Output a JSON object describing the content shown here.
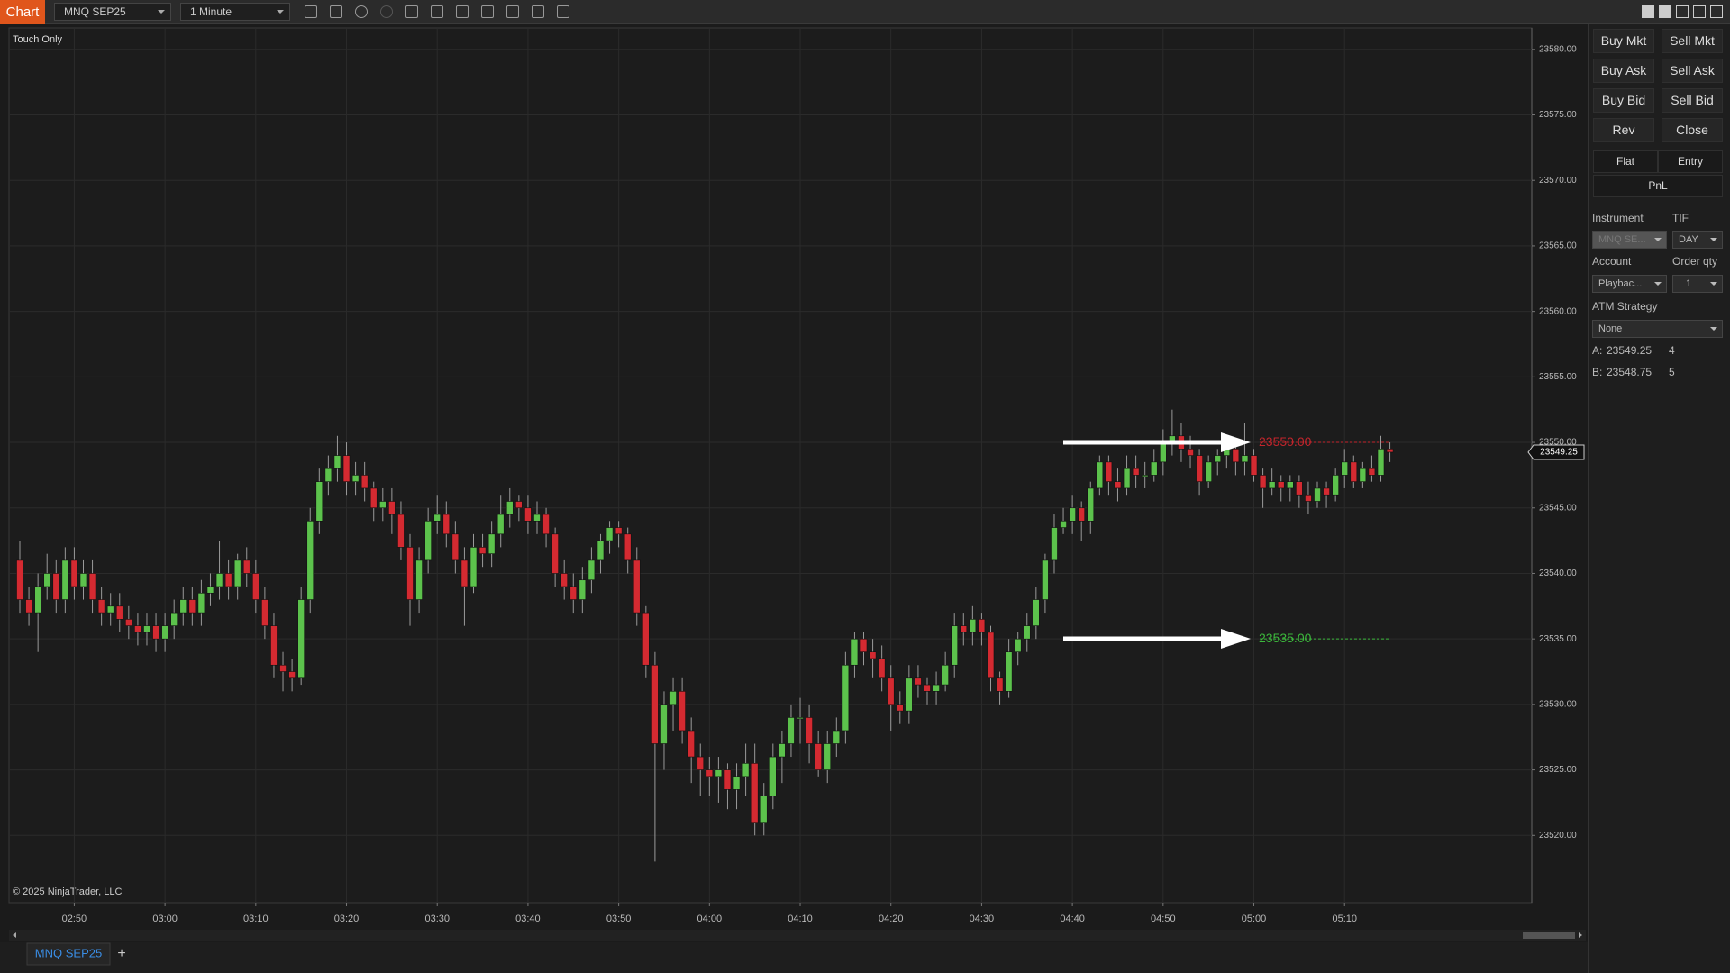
{
  "toolbar": {
    "app": "Chart",
    "instrument": "MNQ SEP25",
    "interval": "1 Minute"
  },
  "panel": {
    "buttons": [
      "Buy Mkt",
      "Sell Mkt",
      "Buy Ask",
      "Sell Ask",
      "Buy Bid",
      "Sell Bid",
      "Rev",
      "Close"
    ],
    "tabs": [
      "Flat",
      "Entry"
    ],
    "pnl": "PnL",
    "instrument_label": "Instrument",
    "tif_label": "TIF",
    "instrument_value": "MNQ SE...",
    "tif_value": "DAY",
    "account_label": "Account",
    "qty_label": "Order qty",
    "account_value": "Playbac...",
    "qty_value": "1",
    "atm_label": "ATM Strategy",
    "atm_value": "None",
    "ask": {
      "label": "A:",
      "price": "23549.25",
      "size": "4"
    },
    "bid": {
      "label": "B:",
      "price": "23548.75",
      "size": "5"
    }
  },
  "tab_bar": {
    "tab": "MNQ SEP25",
    "add": "+"
  },
  "chart_data": {
    "type": "candlestick",
    "annotation": "Touch Only",
    "copyright": "© 2025 NinjaTrader, LLC",
    "price_marker": "23549.25",
    "up_color": "#5cc24c",
    "down_color": "#d42a31",
    "wick_color": "#9a9a9a",
    "grid": true,
    "ylim": [
      23515,
      23581.5
    ],
    "yticks": [
      {
        "value": 23520,
        "label": "23520.00"
      },
      {
        "value": 23525,
        "label": "23525.00"
      },
      {
        "value": 23530,
        "label": "23530.00"
      },
      {
        "value": 23535,
        "label": "23535.00"
      },
      {
        "value": 23540,
        "label": "23540.00"
      },
      {
        "value": 23545,
        "label": "23545.00"
      },
      {
        "value": 23550,
        "label": "23550.00"
      },
      {
        "value": 23555,
        "label": "23555.00"
      },
      {
        "value": 23560,
        "label": "23560.00"
      },
      {
        "value": 23565,
        "label": "23565.00"
      },
      {
        "value": 23570,
        "label": "23570.00"
      },
      {
        "value": 23575,
        "label": "23575.00"
      },
      {
        "value": 23580,
        "label": "23580.00"
      }
    ],
    "levels": [
      {
        "value": 23550,
        "label": "23550.00",
        "color": "#c2252c"
      },
      {
        "value": 23535,
        "label": "23535.00",
        "color": "#3cb83c"
      }
    ],
    "categories": [
      null,
      null,
      null,
      null,
      null,
      null,
      "02:50",
      null,
      null,
      null,
      null,
      null,
      null,
      null,
      null,
      null,
      "03:00",
      null,
      null,
      null,
      null,
      null,
      null,
      null,
      null,
      null,
      "03:10",
      null,
      null,
      null,
      null,
      null,
      null,
      null,
      null,
      null,
      "03:20",
      null,
      null,
      null,
      null,
      null,
      null,
      null,
      null,
      null,
      "03:30",
      null,
      null,
      null,
      null,
      null,
      null,
      null,
      null,
      null,
      "03:40",
      null,
      null,
      null,
      null,
      null,
      null,
      null,
      null,
      null,
      "03:50",
      null,
      null,
      null,
      null,
      null,
      null,
      null,
      null,
      null,
      "04:00",
      null,
      null,
      null,
      null,
      null,
      null,
      null,
      null,
      null,
      "04:10",
      null,
      null,
      null,
      null,
      null,
      null,
      null,
      null,
      null,
      "04:20",
      null,
      null,
      null,
      null,
      null,
      null,
      null,
      null,
      null,
      "04:30",
      null,
      null,
      null,
      null,
      null,
      null,
      null,
      null,
      null,
      "04:40",
      null,
      null,
      null,
      null,
      null,
      null,
      null,
      null,
      null,
      "04:50",
      null,
      null,
      null,
      null,
      null,
      null,
      null,
      null,
      null,
      "05:00",
      null,
      null,
      null,
      null,
      null,
      null,
      null,
      null,
      null,
      "05:10",
      null,
      null,
      null,
      null,
      null
    ],
    "open": [
      23541,
      23538,
      23537,
      23539,
      23540,
      23538,
      23541,
      23539,
      23540,
      23538,
      23537,
      23537.5,
      23536.5,
      23536,
      23535.5,
      23536,
      23535,
      23536,
      23537,
      23538,
      23537,
      23538.5,
      23539,
      23540,
      23539,
      23541,
      23540,
      23538,
      23536,
      23533,
      23532.5,
      23532,
      23538,
      23544,
      23547,
      23548,
      23549,
      23547,
      23547.5,
      23546.5,
      23545,
      23545.5,
      23544.5,
      23542,
      23538,
      23541,
      23544,
      23544.5,
      23543,
      23541,
      23539,
      23542,
      23541.5,
      23543,
      23544.5,
      23545.5,
      23545,
      23544,
      23544.5,
      23543,
      23540,
      23539,
      23538,
      23539.5,
      23541,
      23542.5,
      23543.5,
      23543,
      23541,
      23537,
      23533,
      23527,
      23530,
      23531,
      23528,
      23526,
      23525,
      23524.5,
      23525,
      23523.5,
      23524.5,
      23525.5,
      23521,
      23523,
      23526,
      23527,
      23529,
      23529,
      23527,
      23525,
      23527,
      23528,
      23533,
      23535,
      23534,
      23533.5,
      23532,
      23530,
      23529.5,
      23532,
      23531.5,
      23531,
      23531.5,
      23533,
      23536,
      23535.5,
      23536.5,
      23535.5,
      23532,
      23531,
      23534,
      23535,
      23536,
      23538,
      23541,
      23543.5,
      23544,
      23545,
      23544,
      23546.5,
      23548.5,
      23547,
      23546.5,
      23548,
      23547.5,
      23547.5,
      23548.5,
      23550,
      23550.5,
      23549.5,
      23549,
      23547,
      23548.5,
      23549,
      23549.5,
      23548.5,
      23549,
      23547.5,
      23546.5,
      23547,
      23546.5,
      23547,
      23546,
      23545.5,
      23546.5,
      23546,
      23547.5,
      23548.5,
      23547,
      23548,
      23547.5,
      23549.5
    ],
    "high": [
      23542.5,
      23539,
      23540,
      23541.5,
      23541,
      23542,
      23542,
      23541,
      23541,
      23539,
      23538.5,
      23538.5,
      23537.5,
      23537,
      23537,
      23537,
      23537,
      23538,
      23539,
      23539,
      23539.5,
      23540,
      23542.5,
      23541,
      23541.5,
      23542,
      23541,
      23539,
      23537,
      23534,
      23533.5,
      23539,
      23545,
      23548,
      23549,
      23550.5,
      23550,
      23548.5,
      23548.5,
      23547,
      23546.5,
      23546.5,
      23545.5,
      23543,
      23542,
      23545,
      23546,
      23545.5,
      23544,
      23542,
      23543,
      23543,
      23544,
      23546,
      23546.5,
      23546,
      23546,
      23545.5,
      23545,
      23543.5,
      23541,
      23540,
      23540.5,
      23542,
      23543,
      23544,
      23544,
      23543.5,
      23542,
      23537.5,
      23534,
      23531,
      23532,
      23532,
      23529,
      23527,
      23526,
      23526,
      23525.5,
      23525.5,
      23527,
      23527,
      23524,
      23527,
      23528,
      23530,
      23530.5,
      23530,
      23528,
      23528,
      23529,
      23534,
      23535.5,
      23535.5,
      23535,
      23534.5,
      23533,
      23531,
      23533,
      23533,
      23532,
      23532.5,
      23534,
      23537,
      23537,
      23537.5,
      23537,
      23536,
      23532.5,
      23535,
      23535.5,
      23537,
      23539,
      23541.5,
      23544.5,
      23545,
      23546,
      23545.5,
      23547,
      23549,
      23549,
      23548,
      23549,
      23549,
      23548.5,
      23549.5,
      23551,
      23552.5,
      23551.5,
      23550.5,
      23549.5,
      23549,
      23549.5,
      23550,
      23550,
      23551.5,
      23549.5,
      23548,
      23548,
      23547.5,
      23547.5,
      23547.5,
      23547,
      23547,
      23547,
      23548,
      23549.5,
      23549,
      23548.5,
      23549,
      23550.5,
      23550
    ],
    "low": [
      23537,
      23536,
      23534,
      23538,
      23537,
      23537,
      23538,
      23538,
      23537,
      23536,
      23536,
      23535.5,
      23535,
      23534.5,
      23534.5,
      23534,
      23534,
      23535,
      23536,
      23536,
      23536,
      23537.5,
      23538,
      23538,
      23538,
      23539,
      23537,
      23535,
      23532,
      23531,
      23531,
      23531.5,
      23537,
      23543,
      23546,
      23547,
      23546,
      23546,
      23545.5,
      23544,
      23544,
      23543,
      23541,
      23536,
      23537,
      23540,
      23543,
      23542,
      23540,
      23536,
      23538.5,
      23540.5,
      23540.5,
      23542,
      23543.5,
      23544,
      23543,
      23543,
      23542,
      23539,
      23538,
      23537,
      23537,
      23538.5,
      23540,
      23541.5,
      23542,
      23540,
      23536,
      23532,
      23518,
      23525,
      23528,
      23527,
      23524,
      23523,
      23523,
      23522.5,
      23522,
      23522,
      23523,
      23520,
      23520,
      23522,
      23524,
      23526,
      23527,
      23525.5,
      23524.5,
      23524,
      23526,
      23527,
      23532,
      23533,
      23532,
      23531,
      23528,
      23528.5,
      23528.5,
      23530.5,
      23530,
      23530,
      23531,
      23532,
      23534.5,
      23534.5,
      23534.5,
      23531,
      23530,
      23530.5,
      23533,
      23534,
      23535,
      23537,
      23540,
      23543,
      23543,
      23542.5,
      23543,
      23546,
      23546,
      23545.5,
      23546,
      23546.5,
      23546.5,
      23547,
      23547.5,
      23549,
      23548.5,
      23548,
      23546,
      23546.5,
      23547.5,
      23548,
      23547.5,
      23547.5,
      23547,
      23545,
      23546,
      23545.5,
      23545.5,
      23545,
      23544.5,
      23545,
      23545,
      23545.5,
      23546.5,
      23546.5,
      23546.5,
      23547,
      23547,
      23548.5
    ],
    "close": [
      23538,
      23537,
      23539,
      23540,
      23538,
      23541,
      23539,
      23540,
      23538,
      23537,
      23537.5,
      23536.5,
      23536,
      23535.5,
      23536,
      23535,
      23536,
      23537,
      23538,
      23537,
      23538.5,
      23539,
      23540,
      23539,
      23541,
      23540,
      23538,
      23536,
      23533,
      23532.5,
      23532,
      23538,
      23544,
      23547,
      23548,
      23549,
      23547,
      23547.5,
      23546.5,
      23545,
      23545.5,
      23544.5,
      23542,
      23538,
      23541,
      23544,
      23544.5,
      23543,
      23541,
      23539,
      23542,
      23541.5,
      23543,
      23544.5,
      23545.5,
      23545,
      23544,
      23544.5,
      23543,
      23540,
      23539,
      23538,
      23539.5,
      23541,
      23542.5,
      23543.5,
      23543,
      23541,
      23537,
      23533,
      23527,
      23530,
      23531,
      23528,
      23526,
      23525,
      23524.5,
      23525,
      23523.5,
      23524.5,
      23525.5,
      23521,
      23523,
      23526,
      23527,
      23529,
      23529,
      23527,
      23525,
      23527,
      23528,
      23533,
      23535,
      23534,
      23533.5,
      23532,
      23530,
      23529.5,
      23532,
      23531.5,
      23531,
      23531.5,
      23533,
      23536,
      23535.5,
      23536.5,
      23535.5,
      23532,
      23531,
      23534,
      23535,
      23536,
      23538,
      23541,
      23543.5,
      23544,
      23545,
      23544,
      23546.5,
      23548.5,
      23547,
      23546.5,
      23548,
      23547.5,
      23547.5,
      23548.5,
      23550,
      23550.5,
      23549.5,
      23549,
      23547,
      23548.5,
      23549,
      23549.5,
      23548.5,
      23549,
      23547.5,
      23546.5,
      23547,
      23546.5,
      23547,
      23546,
      23545.5,
      23546.5,
      23546,
      23547.5,
      23548.5,
      23547,
      23548,
      23547.5,
      23549.5,
      23549.25
    ]
  }
}
